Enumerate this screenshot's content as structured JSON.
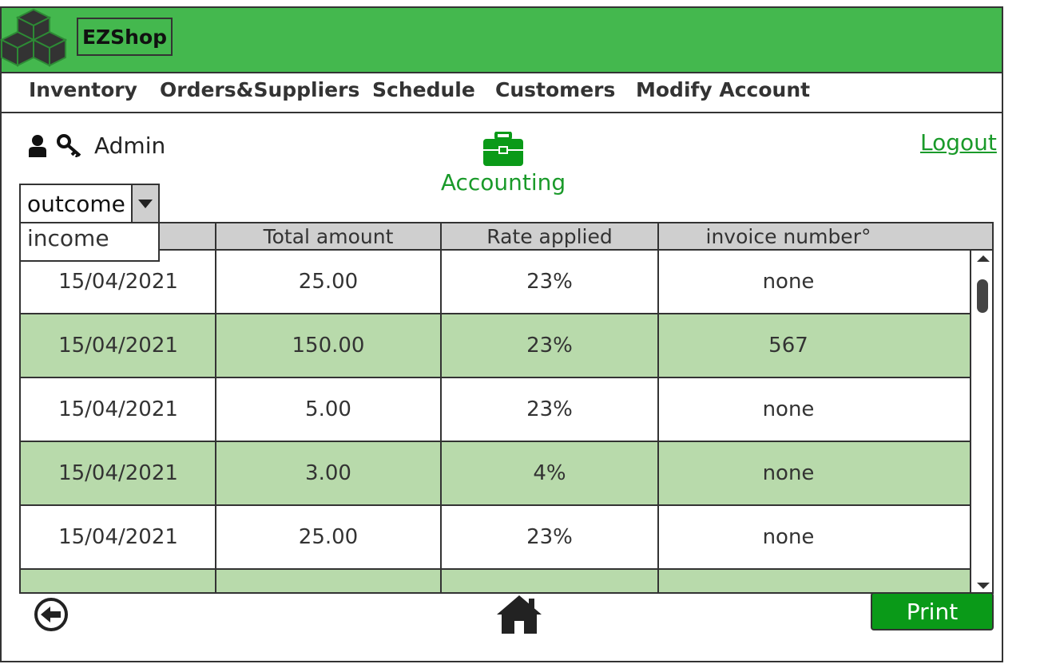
{
  "app": {
    "brand": "EZShop"
  },
  "nav": {
    "items": [
      {
        "label": "Inventory"
      },
      {
        "label": "Orders&Suppliers"
      },
      {
        "label": "Schedule"
      },
      {
        "label": "Customers"
      },
      {
        "label": "Modify Account"
      }
    ]
  },
  "user": {
    "name": "Admin",
    "logout": "Logout"
  },
  "page": {
    "title": "Accounting"
  },
  "filter": {
    "selected": "outcome",
    "options": [
      "income"
    ]
  },
  "table": {
    "columns": [
      "",
      "Total amount",
      "Rate applied",
      "invoice number°"
    ],
    "rows": [
      {
        "date": "15/04/2021",
        "total": "25.00",
        "rate": "23%",
        "invoice": "none"
      },
      {
        "date": "15/04/2021",
        "total": "150.00",
        "rate": "23%",
        "invoice": "567"
      },
      {
        "date": "15/04/2021",
        "total": "5.00",
        "rate": "23%",
        "invoice": "none"
      },
      {
        "date": "15/04/2021",
        "total": "3.00",
        "rate": "4%",
        "invoice": "none"
      },
      {
        "date": "15/04/2021",
        "total": "25.00",
        "rate": "23%",
        "invoice": "none"
      },
      {
        "date": "",
        "total": "",
        "rate": "",
        "invoice": ""
      }
    ]
  },
  "footer": {
    "print": "Print"
  },
  "colors": {
    "header": "#44b84e",
    "accent": "#1a9a2a",
    "row_alt": "#b8daab",
    "print": "#0a9a18"
  },
  "icons": [
    "cubes-logo-icon",
    "user-icon",
    "key-icon",
    "briefcase-icon",
    "back-arrow-icon",
    "home-icon"
  ]
}
